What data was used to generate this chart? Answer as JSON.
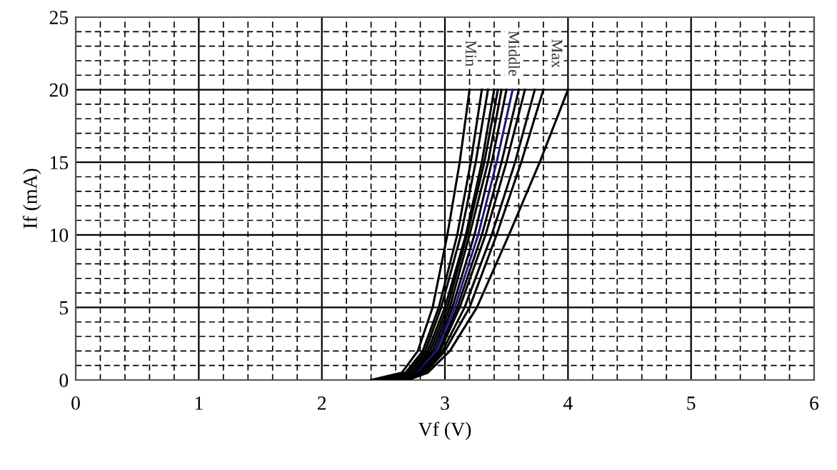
{
  "chart_data": {
    "type": "line",
    "xlabel": "Vf (V)",
    "ylabel": "If (mA)",
    "xlim": [
      0,
      6
    ],
    "ylim": [
      0,
      25
    ],
    "xticks": [
      0,
      {
        "value": 0.2,
        "label": null
      },
      {
        "value": 0.4,
        "label": null
      },
      {
        "value": 0.6,
        "label": null
      },
      {
        "value": 0.8,
        "label": null
      },
      1,
      {
        "value": 1.2,
        "label": null
      },
      {
        "value": 1.4,
        "label": null
      },
      {
        "value": 1.6,
        "label": null
      },
      {
        "value": 1.8,
        "label": null
      },
      2,
      {
        "value": 2.2,
        "label": null
      },
      {
        "value": 2.4,
        "label": null
      },
      {
        "value": 2.6,
        "label": null
      },
      {
        "value": 2.8,
        "label": null
      },
      3,
      {
        "value": 3.2,
        "label": null
      },
      {
        "value": 3.4,
        "label": null
      },
      {
        "value": 3.6,
        "label": null
      },
      {
        "value": 3.8,
        "label": null
      },
      4,
      {
        "value": 4.2,
        "label": null
      },
      {
        "value": 4.4,
        "label": null
      },
      {
        "value": 4.6,
        "label": null
      },
      {
        "value": 4.8,
        "label": null
      },
      5,
      {
        "value": 5.2,
        "label": null
      },
      {
        "value": 5.4,
        "label": null
      },
      {
        "value": 5.6,
        "label": null
      },
      {
        "value": 5.8,
        "label": null
      },
      6
    ],
    "yticks": [
      0,
      {
        "value": 1,
        "label": null
      },
      {
        "value": 2,
        "label": null
      },
      {
        "value": 3,
        "label": null
      },
      {
        "value": 4,
        "label": null
      },
      5,
      {
        "value": 6,
        "label": null
      },
      {
        "value": 7,
        "label": null
      },
      {
        "value": 8,
        "label": null
      },
      {
        "value": 9,
        "label": null
      },
      10,
      {
        "value": 11,
        "label": null
      },
      {
        "value": 12,
        "label": null
      },
      {
        "value": 13,
        "label": null
      },
      {
        "value": 14,
        "label": null
      },
      15,
      {
        "value": 16,
        "label": null
      },
      {
        "value": 17,
        "label": null
      },
      {
        "value": 18,
        "label": null
      },
      {
        "value": 19,
        "label": null
      },
      20,
      {
        "value": 21,
        "label": null
      },
      {
        "value": 22,
        "label": null
      },
      {
        "value": 23,
        "label": null
      },
      {
        "value": 24,
        "label": null
      },
      25
    ],
    "grid": true,
    "line_style": "solid",
    "marker": "none",
    "annotations": [
      {
        "text": "Min",
        "x": 3.2,
        "y": 22.5
      },
      {
        "text": "Middle",
        "x": 3.55,
        "y": 22.5
      },
      {
        "text": "Max",
        "x": 3.9,
        "y": 22.5
      }
    ],
    "series": [
      {
        "color": "#000000",
        "x": [
          2.4,
          2.65,
          2.78,
          2.9,
          3.02,
          3.12,
          3.2
        ],
        "values": [
          0,
          0.5,
          2,
          5,
          10,
          15,
          20
        ]
      },
      {
        "color": "#000000",
        "x": [
          2.45,
          2.68,
          2.82,
          2.95,
          3.1,
          3.21,
          3.3
        ],
        "values": [
          0,
          0.5,
          2,
          5,
          10,
          15,
          20
        ]
      },
      {
        "color": "#000000",
        "x": [
          2.5,
          2.7,
          2.84,
          2.97,
          3.13,
          3.25,
          3.35
        ],
        "values": [
          0,
          0.5,
          2,
          5,
          10,
          15,
          20
        ]
      },
      {
        "color": "#000000",
        "x": [
          2.5,
          2.72,
          2.86,
          3.0,
          3.17,
          3.3,
          3.4
        ],
        "values": [
          0,
          0.5,
          2,
          5,
          10,
          15,
          20
        ]
      },
      {
        "color": "#000000",
        "x": [
          2.55,
          2.74,
          2.88,
          3.02,
          3.18,
          3.32,
          3.43
        ],
        "values": [
          0,
          0.5,
          2,
          5,
          10,
          15,
          20
        ]
      },
      {
        "color": "#000000",
        "x": [
          2.55,
          2.75,
          2.9,
          3.04,
          3.2,
          3.35,
          3.46
        ],
        "values": [
          0,
          0.5,
          2,
          5,
          10,
          15,
          20
        ]
      },
      {
        "color": "#000000",
        "x": [
          2.6,
          2.77,
          2.92,
          3.06,
          3.24,
          3.38,
          3.5
        ],
        "values": [
          0,
          0.5,
          2,
          5,
          10,
          15,
          20
        ]
      },
      {
        "color": "#1a1a80",
        "x": [
          2.6,
          2.78,
          2.93,
          3.08,
          3.27,
          3.42,
          3.55
        ],
        "values": [
          0,
          0.5,
          2,
          5,
          10,
          15,
          20
        ]
      },
      {
        "color": "#000000",
        "x": [
          2.6,
          2.79,
          2.95,
          3.1,
          3.3,
          3.46,
          3.6
        ],
        "values": [
          0,
          0.5,
          2,
          5,
          10,
          15,
          20
        ]
      },
      {
        "color": "#000000",
        "x": [
          2.65,
          2.8,
          2.96,
          3.12,
          3.33,
          3.5,
          3.65
        ],
        "values": [
          0,
          0.5,
          2,
          5,
          10,
          15,
          20
        ]
      },
      {
        "color": "#000000",
        "x": [
          2.65,
          2.82,
          2.98,
          3.16,
          3.38,
          3.57,
          3.73
        ],
        "values": [
          0,
          0.5,
          2,
          5,
          10,
          15,
          20
        ]
      },
      {
        "color": "#000000",
        "x": [
          2.7,
          2.84,
          3.0,
          3.2,
          3.42,
          3.62,
          3.8
        ],
        "values": [
          0,
          0.5,
          2,
          5,
          10,
          15,
          20
        ]
      },
      {
        "color": "#000000",
        "x": [
          2.7,
          2.86,
          3.04,
          3.26,
          3.52,
          3.77,
          4.0
        ],
        "values": [
          0,
          0.5,
          2,
          5,
          10,
          15,
          20
        ]
      }
    ]
  }
}
